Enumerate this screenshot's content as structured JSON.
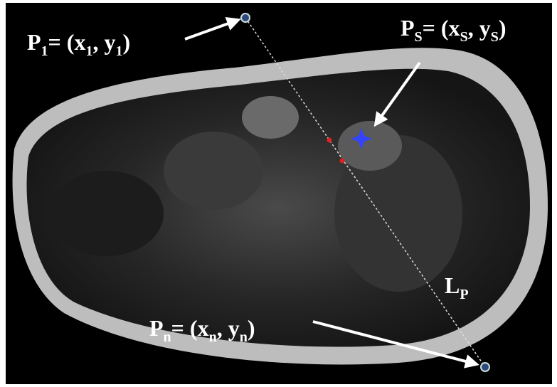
{
  "annotations": [
    {
      "parts": [
        "P",
        "1",
        "= (x",
        "1",
        ", y",
        "1",
        ")"
      ]
    },
    {
      "parts": [
        "P",
        "S",
        "= (x",
        "S",
        ", y",
        "S",
        ")"
      ]
    },
    {
      "parts": [
        "P",
        "n",
        "= (x",
        "n",
        ", y",
        "n",
        ")"
      ]
    },
    {
      "parts": [
        "L",
        "P"
      ]
    }
  ]
}
